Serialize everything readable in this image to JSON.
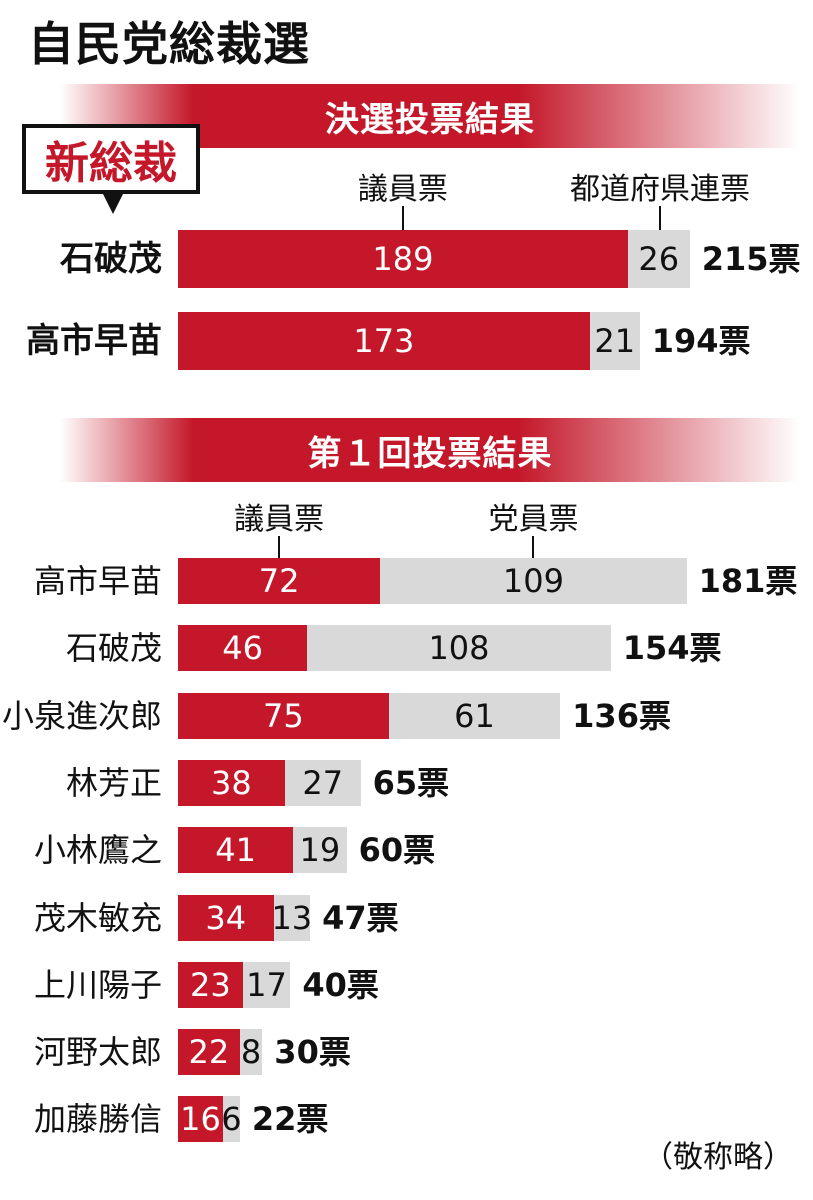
{
  "page": {
    "title": "自民党総裁選",
    "note": "（敬称略）",
    "callout": "新総裁"
  },
  "colors": {
    "red": "#c4182a",
    "gray": "#d9d9d9"
  },
  "chart_data": [
    {
      "type": "bar",
      "stacked": true,
      "orientation": "horizontal",
      "title": "決選投票結果",
      "series_labels": [
        "議員票",
        "都道府県連票"
      ],
      "categories": [
        "石破茂",
        "高市早苗"
      ],
      "series": [
        {
          "name": "議員票",
          "values": [
            189,
            173
          ]
        },
        {
          "name": "都道府県連票",
          "values": [
            26,
            21
          ]
        }
      ],
      "totals": [
        "215票",
        "194票"
      ]
    },
    {
      "type": "bar",
      "stacked": true,
      "orientation": "horizontal",
      "title": "第１回投票結果",
      "series_labels": [
        "議員票",
        "党員票"
      ],
      "categories": [
        "高市早苗",
        "石破茂",
        "小泉進次郎",
        "林芳正",
        "小林鷹之",
        "茂木敏充",
        "上川陽子",
        "河野太郎",
        "加藤勝信"
      ],
      "series": [
        {
          "name": "議員票",
          "values": [
            72,
            46,
            75,
            38,
            41,
            34,
            23,
            22,
            16
          ]
        },
        {
          "name": "党員票",
          "values": [
            109,
            108,
            61,
            27,
            19,
            13,
            17,
            8,
            6
          ]
        }
      ],
      "totals": [
        "181票",
        "154票",
        "136票",
        "65票",
        "60票",
        "47票",
        "40票",
        "30票",
        "22票"
      ]
    }
  ]
}
